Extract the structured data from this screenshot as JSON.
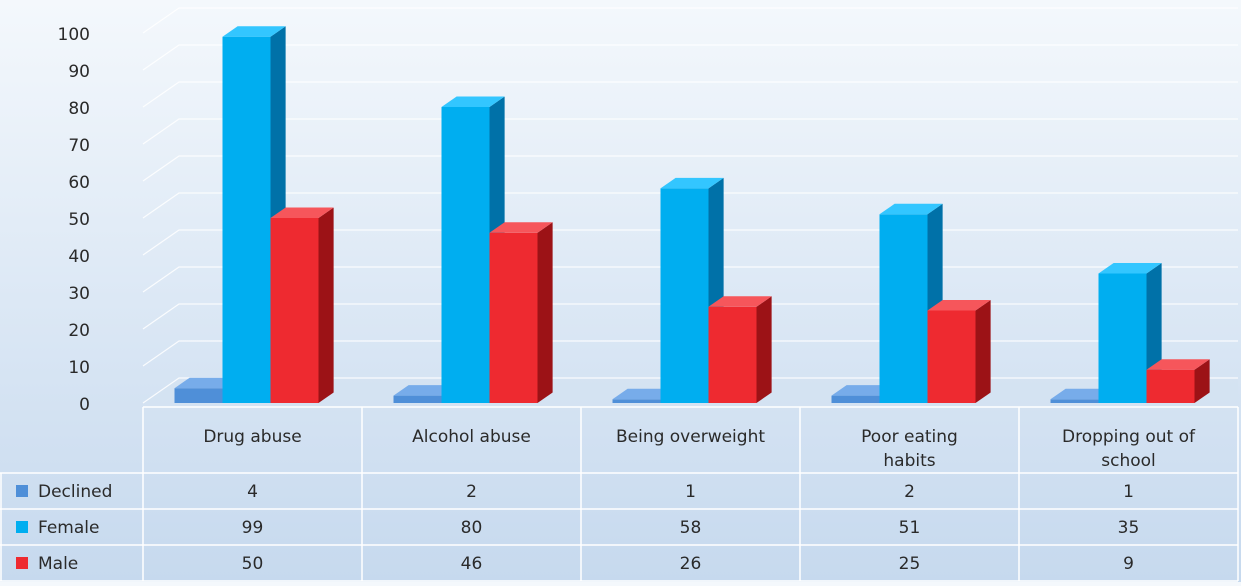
{
  "chart_data": {
    "type": "bar",
    "title": "",
    "xlabel": "",
    "ylabel": "",
    "ylim": [
      0,
      100
    ],
    "yticks": [
      0,
      10,
      20,
      30,
      40,
      50,
      60,
      70,
      80,
      90,
      100
    ],
    "grid": true,
    "style": "3d-clustered-bar-with-data-table",
    "categories": [
      [
        "Drug abuse"
      ],
      [
        "Alcohol abuse"
      ],
      [
        "Being overweight"
      ],
      [
        "Poor eating",
        "habits"
      ],
      [
        "Dropping out of",
        "school"
      ]
    ],
    "series": [
      {
        "name": "Declined",
        "color": "#4f8fd8",
        "side_color": "#2f63a6",
        "top_color": "#77acea",
        "values": [
          4,
          2,
          1,
          2,
          1
        ]
      },
      {
        "name": "Female",
        "color": "#00aef0",
        "side_color": "#0071a8",
        "top_color": "#33c6ff",
        "values": [
          99,
          80,
          58,
          51,
          35
        ]
      },
      {
        "name": "Male",
        "color": "#ee2a30",
        "side_color": "#9c1216",
        "top_color": "#f6565b",
        "values": [
          50,
          46,
          26,
          25,
          9
        ]
      }
    ]
  }
}
